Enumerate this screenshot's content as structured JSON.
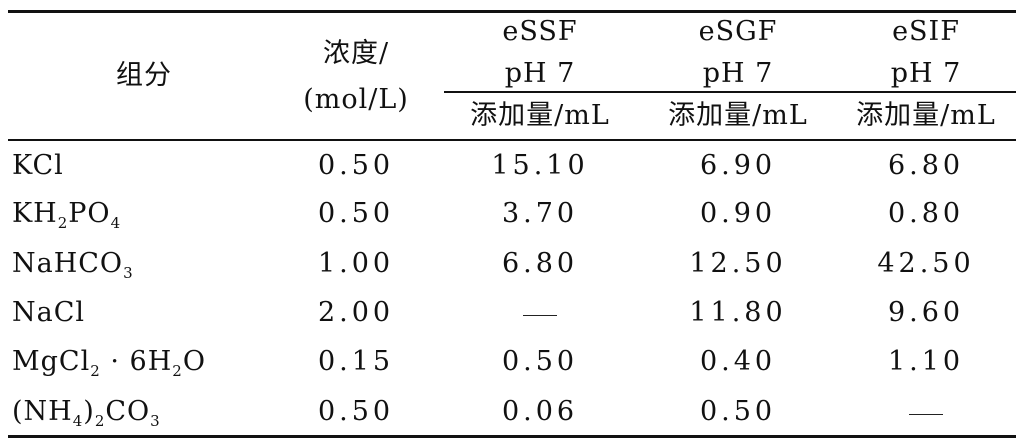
{
  "header": {
    "component": "组分",
    "concentration_line1": "浓度/",
    "concentration_line2": "(mol/L)",
    "groups": [
      {
        "name": "eSSF",
        "ph": "pH 7",
        "sub": "添加量/mL"
      },
      {
        "name": "eSGF",
        "ph": "pH 7",
        "sub": "添加量/mL"
      },
      {
        "name": "eSIF",
        "ph": "pH 7",
        "sub": "添加量/mL"
      }
    ]
  },
  "rows": [
    {
      "component": {
        "parts": [
          "KCl"
        ],
        "subs": []
      },
      "conc": "0.50",
      "essf": "15.10",
      "esgf": "6.90",
      "esif": "6.80"
    },
    {
      "component": {
        "parts": [
          "KH",
          "PO"
        ],
        "subs": [
          "2",
          "4"
        ]
      },
      "conc": "0.50",
      "essf": "3.70",
      "esgf": "0.90",
      "esif": "0.80"
    },
    {
      "component": {
        "parts": [
          "NaHCO"
        ],
        "subs": [
          "3"
        ]
      },
      "conc": "1.00",
      "essf": "6.80",
      "esgf": "12.50",
      "esif": "42.50"
    },
    {
      "component": {
        "parts": [
          "NaCl"
        ],
        "subs": []
      },
      "conc": "2.00",
      "essf": "—",
      "esgf": "11.80",
      "esif": "9.60"
    },
    {
      "component": {
        "parts": [
          "MgCl",
          " · 6H",
          "O"
        ],
        "subs": [
          "2",
          "2"
        ]
      },
      "conc": "0.15",
      "essf": "0.50",
      "esgf": "0.40",
      "esif": "1.10"
    },
    {
      "component": {
        "parts": [
          "(NH",
          ")",
          "CO"
        ],
        "subs": [
          "4",
          "2",
          "3"
        ]
      },
      "conc": "0.50",
      "essf": "0.06",
      "esgf": "0.50",
      "esif": "—"
    }
  ]
}
